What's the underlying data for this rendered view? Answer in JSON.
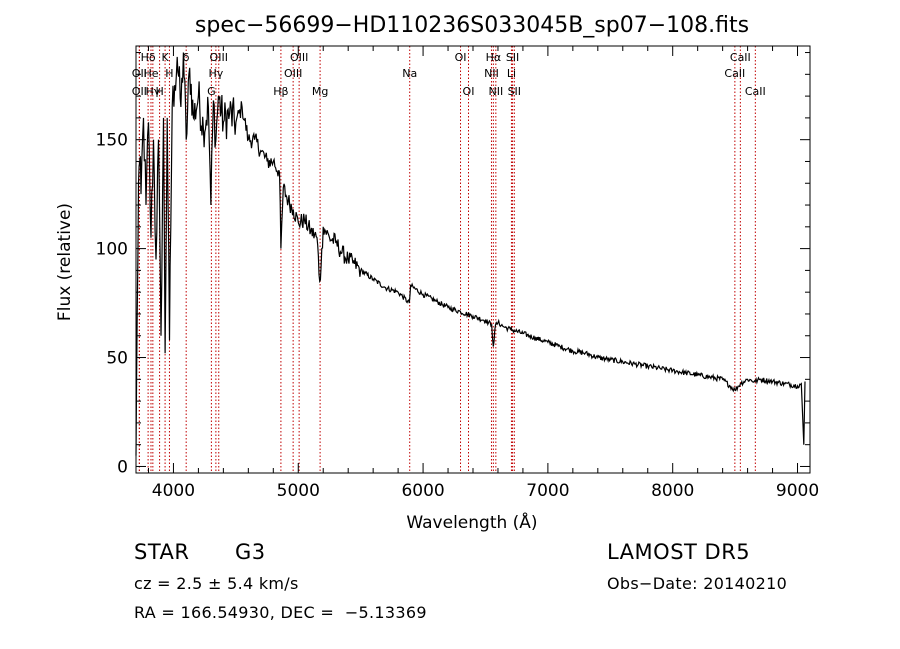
{
  "chart_data": {
    "type": "line",
    "title": "spec−56699−HD110236S033045B_sp07−108.fits",
    "xlabel": "Wavelength (Å)",
    "ylabel": "Flux (relative)",
    "xlim": [
      3700,
      9100
    ],
    "ylim": [
      -3,
      193
    ],
    "xticks": [
      4000,
      5000,
      6000,
      7000,
      8000,
      9000
    ],
    "yticks": [
      0,
      50,
      100,
      150
    ],
    "grid": false,
    "series": [
      {
        "x": [
          3700,
          3710,
          3720,
          3730,
          3740,
          3760,
          3780,
          3800,
          3820,
          3840,
          3860,
          3880,
          3900,
          3920,
          3933,
          3950,
          3968,
          3990,
          4010,
          4030,
          4060,
          4080,
          4102,
          4130,
          4160,
          4200,
          4240,
          4280,
          4300,
          4320,
          4340,
          4360,
          4400,
          4450,
          4500,
          4550,
          4600,
          4650,
          4700,
          4750,
          4800,
          4850,
          4861,
          4880,
          4920,
          4960,
          5000,
          5050,
          5100,
          5150,
          5172,
          5183,
          5200,
          5250,
          5300,
          5350,
          5400,
          5450,
          5500,
          5600,
          5700,
          5800,
          5890,
          5900,
          6000,
          6100,
          6200,
          6300,
          6400,
          6500,
          6550,
          6563,
          6580,
          6600,
          6650,
          6700,
          6800,
          6900,
          7000,
          7100,
          7200,
          7300,
          7400,
          7500,
          7600,
          7700,
          7800,
          7900,
          8000,
          8100,
          8200,
          8300,
          8400,
          8498,
          8542,
          8600,
          8662,
          8700,
          8800,
          8900,
          9000,
          9030,
          9050,
          9060
        ],
        "values": [
          5,
          70,
          130,
          140,
          125,
          160,
          120,
          158,
          105,
          150,
          95,
          150,
          60,
          160,
          52,
          160,
          58,
          165,
          175,
          188,
          165,
          190,
          150,
          183,
          160,
          170,
          155,
          165,
          120,
          168,
          150,
          170,
          158,
          162,
          158,
          165,
          150,
          150,
          145,
          140,
          140,
          135,
          100,
          128,
          122,
          118,
          112,
          113,
          108,
          105,
          85,
          92,
          110,
          105,
          103,
          98,
          95,
          93,
          90,
          86,
          82,
          80,
          75,
          83,
          79,
          76,
          73,
          71,
          69,
          67,
          65,
          55,
          65,
          66,
          64,
          63,
          61,
          59,
          57,
          55,
          53,
          52,
          50,
          49,
          48,
          47,
          46,
          45,
          44,
          43,
          42,
          41,
          40,
          35,
          38,
          40,
          39,
          40,
          39,
          38,
          37,
          38,
          10,
          39
        ]
      }
    ],
    "lines": [
      {
        "label": "Hδ",
        "x": 3797,
        "row": 1
      },
      {
        "label": "OII",
        "x": 3727,
        "row": 2
      },
      {
        "label": "OII",
        "x": 3727,
        "row": 3
      },
      {
        "label": "He",
        "x": 3820,
        "row": 2
      },
      {
        "label": "Hγ",
        "x": 3835,
        "row": 3
      },
      {
        "label": "K",
        "x": 3933,
        "row": 1
      },
      {
        "label": "H",
        "x": 3968,
        "row": 2
      },
      {
        "label": "H",
        "x": 3889,
        "row": 3
      },
      {
        "label": "δ",
        "x": 4102,
        "row": 1
      },
      {
        "label": "OIII",
        "x": 4363,
        "row": 1
      },
      {
        "label": "Hγ",
        "x": 4340,
        "row": 2
      },
      {
        "label": "G",
        "x": 4304,
        "row": 3
      },
      {
        "label": "OIII",
        "x": 5007,
        "row": 1
      },
      {
        "label": "OIII",
        "x": 4959,
        "row": 2
      },
      {
        "label": "Hβ",
        "x": 4861,
        "row": 3
      },
      {
        "label": "Mg",
        "x": 5175,
        "row": 3
      },
      {
        "label": "Na",
        "x": 5893,
        "row": 2
      },
      {
        "label": "OI",
        "x": 6300,
        "row": 1
      },
      {
        "label": "OI",
        "x": 6364,
        "row": 3
      },
      {
        "label": "Hα",
        "x": 6563,
        "row": 1
      },
      {
        "label": "NII",
        "x": 6548,
        "row": 2
      },
      {
        "label": "NII",
        "x": 6583,
        "row": 3
      },
      {
        "label": "SII",
        "x": 6717,
        "row": 1
      },
      {
        "label": "Li",
        "x": 6708,
        "row": 2
      },
      {
        "label": "SII",
        "x": 6731,
        "row": 3
      },
      {
        "label": "CaII",
        "x": 8542,
        "row": 1
      },
      {
        "label": "CaII",
        "x": 8498,
        "row": 2
      },
      {
        "label": "CaII",
        "x": 8662,
        "row": 3
      }
    ]
  },
  "info": {
    "object_class": "STAR",
    "subclass": "G3",
    "survey": "LAMOST DR5",
    "redshift": "cz = 2.5 ± 5.4 km/s",
    "obs_date": "Obs−Date: 20140210",
    "coords": "RA = 166.54930, DEC =  −5.13369"
  }
}
